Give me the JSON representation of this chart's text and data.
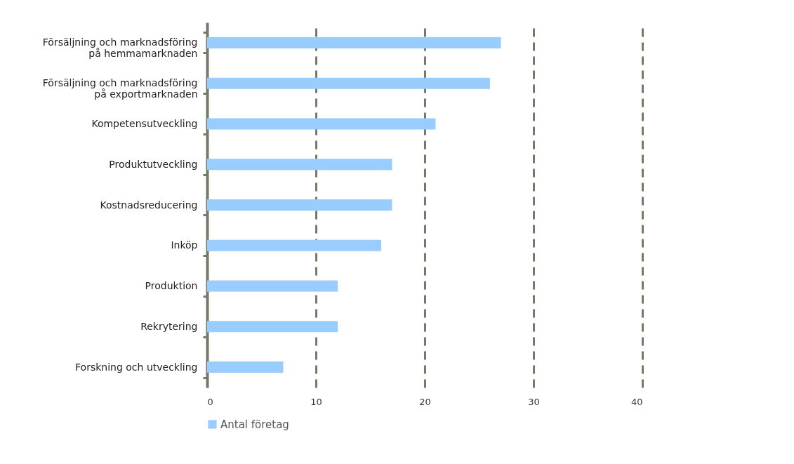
{
  "chart_data": {
    "type": "bar",
    "orientation": "horizontal",
    "categories": [
      "Försäljning och marknadsföring\npå hemmamarknaden",
      "Försäljning och marknadsföring\npå exportmarknaden",
      "Kompetensutveckling",
      "Produktutveckling",
      "Kostnadsreducering",
      "Inköp",
      "Produktion",
      "Rekrytering",
      "Forskning och utveckling"
    ],
    "series": [
      {
        "name": "Antal företag",
        "color": "#99ccff",
        "values": [
          27,
          26,
          21,
          17,
          17,
          16,
          12,
          12,
          7
        ]
      }
    ],
    "xlim": [
      0,
      40
    ],
    "xticks": [
      0,
      10,
      20,
      30,
      40
    ],
    "grid": "x",
    "line_style": "dashed",
    "legend": "bottom"
  }
}
